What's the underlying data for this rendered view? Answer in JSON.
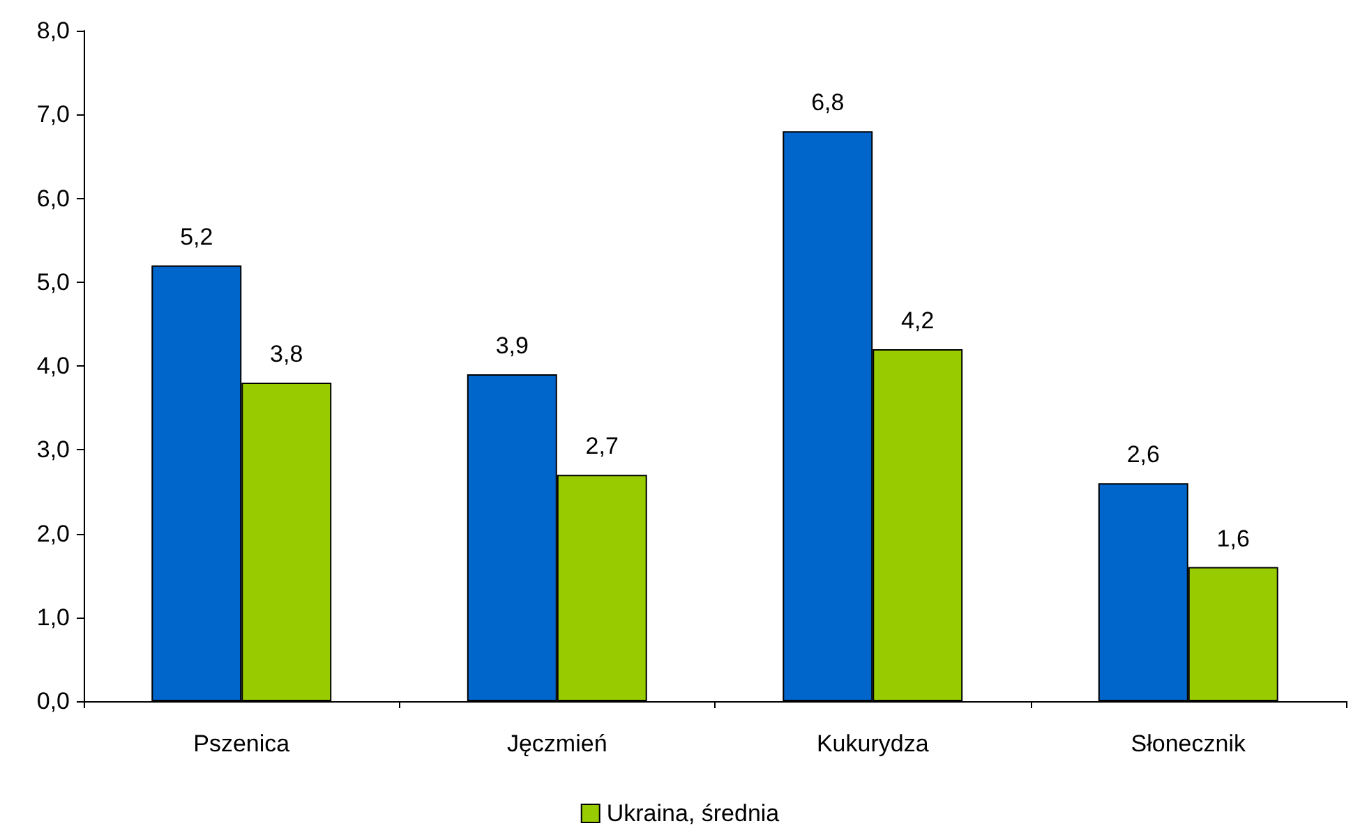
{
  "chart_data": {
    "type": "bar",
    "categories": [
      "Pszenica",
      "Jęczmień",
      "Kukurydza",
      "Słonecznik"
    ],
    "series": [
      {
        "color": "#0066cc",
        "values": [
          5.2,
          3.9,
          6.8,
          2.6
        ],
        "value_labels": [
          "5,2",
          "3,9",
          "6,8",
          "2,6"
        ]
      },
      {
        "name": "Ukraina, średnia",
        "color": "#99cc00",
        "values": [
          3.8,
          2.7,
          4.2,
          1.6
        ],
        "value_labels": [
          "3,8",
          "2,7",
          "4,2",
          "1,6"
        ]
      }
    ],
    "ylim": [
      0,
      8
    ],
    "yticks": [
      {
        "value": 0,
        "label": "0,0"
      },
      {
        "value": 1,
        "label": "1,0"
      },
      {
        "value": 2,
        "label": "2,0"
      },
      {
        "value": 3,
        "label": "3,0"
      },
      {
        "value": 4,
        "label": "4,0"
      },
      {
        "value": 5,
        "label": "5,0"
      },
      {
        "value": 6,
        "label": "6,0"
      },
      {
        "value": 7,
        "label": "7,0"
      },
      {
        "value": 8,
        "label": "8,0"
      }
    ],
    "grid": false,
    "legend": "bottom"
  }
}
